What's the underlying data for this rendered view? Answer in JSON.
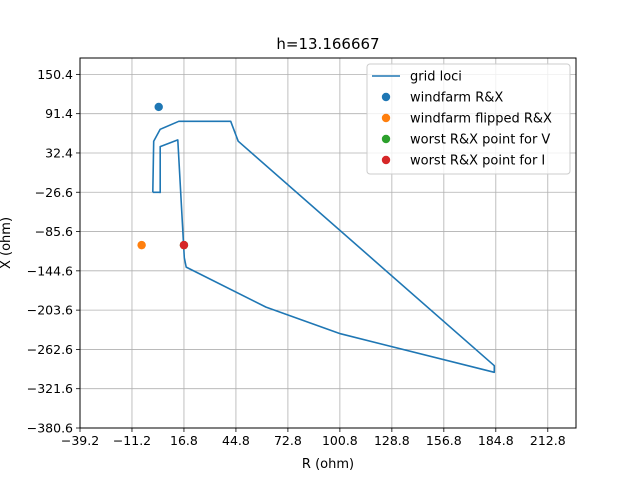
{
  "chart_data": {
    "type": "line",
    "title": "h=13.166667",
    "xlabel": "R (ohm)",
    "ylabel": "X (ohm)",
    "xlim": [
      -39.2,
      228.0
    ],
    "ylim": [
      -380.6,
      175.0
    ],
    "xticks": [
      -39.2,
      -11.2,
      16.8,
      44.8,
      72.8,
      100.8,
      128.8,
      156.8,
      184.8,
      212.8
    ],
    "xtick_labels": [
      "−39.2",
      "−11.2",
      "16.8",
      "44.8",
      "72.8",
      "100.8",
      "128.8",
      "156.8",
      "184.8",
      "212.8"
    ],
    "yticks": [
      -380.6,
      -321.6,
      -262.6,
      -203.6,
      -144.6,
      -85.6,
      -26.6,
      32.4,
      91.4,
      150.4
    ],
    "ytick_labels": [
      "−380.6",
      "−321.6",
      "−262.6",
      "−203.6",
      "−144.6",
      "−85.6",
      "−26.6",
      "32.4",
      "91.4",
      "150.4"
    ],
    "grid": true,
    "legend_position": "top-right",
    "series": [
      {
        "name": "grid loci",
        "kind": "line",
        "color": "#1f77b4",
        "x": [
          0.0,
          0.5,
          4.0,
          14.0,
          42.0,
          46.0,
          184.0,
          184.0,
          101.0,
          61.0,
          18.0,
          17.0,
          13.5,
          4.0,
          4.0,
          3.5,
          0.5,
          0.0
        ],
        "y": [
          -26.6,
          50.0,
          68.0,
          80.0,
          80.0,
          50.0,
          -287.0,
          -297.0,
          -239.0,
          -199.0,
          -139.0,
          -125.0,
          52.0,
          42.0,
          -27.0,
          -26.6,
          -26.6,
          -26.6
        ]
      },
      {
        "name": "windfarm R&X",
        "kind": "scatter",
        "color": "#1f77b4",
        "x": [
          3.2
        ],
        "y": [
          101.5
        ]
      },
      {
        "name": "windfarm flipped R&X",
        "kind": "scatter",
        "color": "#ff7f0e",
        "x": [
          -6.0
        ],
        "y": [
          -106.0
        ]
      },
      {
        "name": "worst R&X point for V",
        "kind": "scatter",
        "color": "#2ca02c",
        "x": [
          16.8
        ],
        "y": [
          -106.0
        ]
      },
      {
        "name": "worst R&X point for I",
        "kind": "scatter",
        "color": "#d62728",
        "x": [
          16.8
        ],
        "y": [
          -106.0
        ]
      }
    ]
  }
}
